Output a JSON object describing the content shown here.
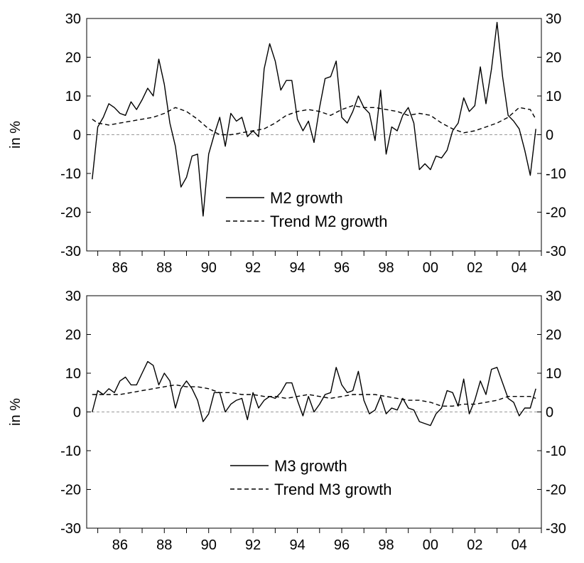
{
  "chart_data": [
    {
      "type": "line",
      "ylabel": "in %",
      "xlim": [
        1984.5,
        2005.0
      ],
      "ylim": [
        -30,
        30
      ],
      "x_ticks": [
        1985,
        1986,
        1987,
        1988,
        1989,
        1990,
        1991,
        1992,
        1993,
        1994,
        1995,
        1996,
        1997,
        1998,
        1999,
        2000,
        2001,
        2002,
        2003,
        2004,
        2005
      ],
      "x_tick_labels": [
        {
          "x": 1986,
          "label": "86"
        },
        {
          "x": 1988,
          "label": "88"
        },
        {
          "x": 1990,
          "label": "90"
        },
        {
          "x": 1992,
          "label": "92"
        },
        {
          "x": 1994,
          "label": "94"
        },
        {
          "x": 1996,
          "label": "96"
        },
        {
          "x": 1998,
          "label": "98"
        },
        {
          "x": 2000,
          "label": "00"
        },
        {
          "x": 2002,
          "label": "02"
        },
        {
          "x": 2004,
          "label": "04"
        }
      ],
      "y_ticks": [
        -30,
        -20,
        -10,
        0,
        10,
        20,
        30
      ],
      "y_tick_labels": [
        "-30",
        "-20",
        "-10",
        "0",
        "10",
        "20",
        "30"
      ],
      "zero_line": true,
      "grid": false,
      "legend_position": "bottom-center",
      "series": [
        {
          "name": "M2 growth",
          "style": "solid",
          "color": "#000000",
          "x": [
            1984.75,
            1985.0,
            1985.25,
            1985.5,
            1985.75,
            1986.0,
            1986.25,
            1986.5,
            1986.75,
            1987.0,
            1987.25,
            1987.5,
            1987.75,
            1988.0,
            1988.25,
            1988.5,
            1988.75,
            1989.0,
            1989.25,
            1989.5,
            1989.75,
            1990.0,
            1990.25,
            1990.5,
            1990.75,
            1991.0,
            1991.25,
            1991.5,
            1991.75,
            1992.0,
            1992.25,
            1992.5,
            1992.75,
            1993.0,
            1993.25,
            1993.5,
            1993.75,
            1994.0,
            1994.25,
            1994.5,
            1994.75,
            1995.0,
            1995.25,
            1995.5,
            1995.75,
            1996.0,
            1996.25,
            1996.5,
            1996.75,
            1997.0,
            1997.25,
            1997.5,
            1997.75,
            1998.0,
            1998.25,
            1998.5,
            1998.75,
            1999.0,
            1999.25,
            1999.5,
            1999.75,
            2000.0,
            2000.25,
            2000.5,
            2000.75,
            2001.0,
            2001.25,
            2001.5,
            2001.75,
            2002.0,
            2002.25,
            2002.5,
            2002.75,
            2003.0,
            2003.25,
            2003.5,
            2003.75,
            2004.0,
            2004.25,
            2004.5,
            2004.75
          ],
          "values": [
            -11.5,
            2,
            4.5,
            8,
            7,
            5.5,
            5,
            8.5,
            6.5,
            9,
            12,
            10,
            19.5,
            13,
            3,
            -3,
            -13.5,
            -11,
            -5.5,
            -5,
            -21,
            -5,
            0,
            4.5,
            -3,
            5.5,
            3.5,
            4.5,
            -0.5,
            1,
            -0.5,
            17,
            23.5,
            19,
            11.5,
            14,
            14,
            4,
            1,
            3.5,
            -2,
            7,
            14.5,
            15,
            19,
            4.5,
            3,
            6,
            10,
            7,
            5.5,
            -1.5,
            11.5,
            -5,
            2,
            1,
            5,
            7,
            3,
            -9,
            -7.5,
            -9,
            -5.5,
            -6,
            -4,
            1,
            3,
            9.5,
            6,
            7.5,
            17.5,
            8,
            17,
            29,
            15,
            5,
            3.5,
            1.5,
            -4,
            -10.5,
            1.5
          ]
        },
        {
          "name": "Trend M2 growth",
          "style": "dashed",
          "color": "#000000",
          "x": [
            1984.75,
            1985.0,
            1985.5,
            1986.0,
            1986.5,
            1987.0,
            1987.5,
            1988.0,
            1988.5,
            1989.0,
            1989.5,
            1990.0,
            1990.5,
            1991.0,
            1991.5,
            1992.0,
            1992.5,
            1993.0,
            1993.5,
            1994.0,
            1994.5,
            1995.0,
            1995.5,
            1996.0,
            1996.5,
            1997.0,
            1997.5,
            1998.0,
            1998.5,
            1999.0,
            1999.5,
            2000.0,
            2000.5,
            2001.0,
            2001.5,
            2002.0,
            2002.5,
            2003.0,
            2003.5,
            2004.0,
            2004.5,
            2004.75
          ],
          "values": [
            4,
            3,
            2.5,
            3,
            3.5,
            4,
            4.5,
            5.5,
            7,
            6,
            4,
            1.5,
            0,
            0,
            0.5,
            1,
            1.5,
            3,
            5,
            6,
            6.5,
            6,
            5,
            6.5,
            7.5,
            7,
            7,
            6.5,
            6,
            5,
            5.5,
            5,
            3,
            1.5,
            0.5,
            1,
            2,
            3,
            4.5,
            7,
            6.5,
            4
          ]
        }
      ]
    },
    {
      "type": "line",
      "ylabel": "in %",
      "xlim": [
        1984.5,
        2005.0
      ],
      "ylim": [
        -30,
        30
      ],
      "x_ticks": [
        1985,
        1986,
        1987,
        1988,
        1989,
        1990,
        1991,
        1992,
        1993,
        1994,
        1995,
        1996,
        1997,
        1998,
        1999,
        2000,
        2001,
        2002,
        2003,
        2004,
        2005
      ],
      "x_tick_labels": [
        {
          "x": 1986,
          "label": "86"
        },
        {
          "x": 1988,
          "label": "88"
        },
        {
          "x": 1990,
          "label": "90"
        },
        {
          "x": 1992,
          "label": "92"
        },
        {
          "x": 1994,
          "label": "94"
        },
        {
          "x": 1996,
          "label": "96"
        },
        {
          "x": 1998,
          "label": "98"
        },
        {
          "x": 2000,
          "label": "00"
        },
        {
          "x": 2002,
          "label": "02"
        },
        {
          "x": 2004,
          "label": "04"
        }
      ],
      "y_ticks": [
        -30,
        -20,
        -10,
        0,
        10,
        20,
        30
      ],
      "y_tick_labels": [
        "-30",
        "-20",
        "-10",
        "0",
        "10",
        "20",
        "30"
      ],
      "zero_line": true,
      "grid": false,
      "legend_position": "bottom-center",
      "series": [
        {
          "name": "M3 growth",
          "style": "solid",
          "color": "#000000",
          "x": [
            1984.75,
            1985.0,
            1985.25,
            1985.5,
            1985.75,
            1986.0,
            1986.25,
            1986.5,
            1986.75,
            1987.0,
            1987.25,
            1987.5,
            1987.75,
            1988.0,
            1988.25,
            1988.5,
            1988.75,
            1989.0,
            1989.25,
            1989.5,
            1989.75,
            1990.0,
            1990.25,
            1990.5,
            1990.75,
            1991.0,
            1991.25,
            1991.5,
            1991.75,
            1992.0,
            1992.25,
            1992.5,
            1992.75,
            1993.0,
            1993.25,
            1993.5,
            1993.75,
            1994.0,
            1994.25,
            1994.5,
            1994.75,
            1995.0,
            1995.25,
            1995.5,
            1995.75,
            1996.0,
            1996.25,
            1996.5,
            1996.75,
            1997.0,
            1997.25,
            1997.5,
            1997.75,
            1998.0,
            1998.25,
            1998.5,
            1998.75,
            1999.0,
            1999.25,
            1999.5,
            1999.75,
            2000.0,
            2000.25,
            2000.5,
            2000.75,
            2001.0,
            2001.25,
            2001.5,
            2001.75,
            2002.0,
            2002.25,
            2002.5,
            2002.75,
            2003.0,
            2003.25,
            2003.5,
            2003.75,
            2004.0,
            2004.25,
            2004.5,
            2004.75
          ],
          "values": [
            0,
            5.5,
            4.5,
            6,
            5,
            8,
            9,
            7,
            7,
            10,
            13,
            12,
            7,
            10,
            8,
            1,
            6,
            8,
            6,
            3,
            -2.5,
            -0.5,
            5,
            5,
            0,
            2,
            3,
            3.5,
            -2,
            5,
            1,
            3,
            4,
            3.5,
            5,
            7.5,
            7.5,
            3,
            -1,
            4,
            0,
            2,
            4.5,
            5,
            11.5,
            7,
            5,
            5.5,
            10.5,
            3,
            -0.5,
            0.5,
            4,
            -0.5,
            1,
            0.5,
            3.5,
            1,
            0.5,
            -2.5,
            -3,
            -3.5,
            -0.5,
            1,
            5.5,
            5,
            1.5,
            8.5,
            -0.5,
            3,
            8,
            4.5,
            11,
            11.5,
            7.5,
            3.5,
            2.5,
            -1,
            1,
            1,
            6
          ]
        },
        {
          "name": "Trend M3 growth",
          "style": "dashed",
          "color": "#000000",
          "x": [
            1984.75,
            1985.0,
            1985.5,
            1986.0,
            1986.5,
            1987.0,
            1987.5,
            1988.0,
            1988.5,
            1989.0,
            1989.5,
            1990.0,
            1990.5,
            1991.0,
            1991.5,
            1992.0,
            1992.5,
            1993.0,
            1993.5,
            1994.0,
            1994.5,
            1995.0,
            1995.5,
            1996.0,
            1996.5,
            1997.0,
            1997.5,
            1998.0,
            1998.5,
            1999.0,
            1999.5,
            2000.0,
            2000.5,
            2001.0,
            2001.5,
            2002.0,
            2002.5,
            2003.0,
            2003.5,
            2004.0,
            2004.5,
            2004.75
          ],
          "values": [
            4.5,
            4.5,
            4.5,
            4.5,
            5,
            5.5,
            6,
            6.5,
            7,
            6.5,
            6.5,
            6,
            5,
            5,
            4.5,
            4.5,
            4,
            4,
            3.5,
            4,
            4.5,
            4,
            3.5,
            4,
            4.5,
            4.5,
            4.5,
            4,
            3.5,
            3,
            3,
            2.5,
            1.5,
            1.5,
            2,
            2,
            2.5,
            3,
            4,
            4,
            4,
            3.5
          ]
        }
      ]
    }
  ]
}
